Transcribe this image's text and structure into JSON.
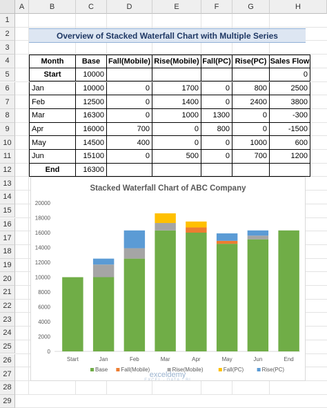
{
  "sheet": {
    "columns": [
      "A",
      "B",
      "C",
      "D",
      "E",
      "F",
      "G",
      "H"
    ],
    "rows": [
      "1",
      "2",
      "3",
      "4",
      "5",
      "6",
      "7",
      "8",
      "9",
      "10",
      "11",
      "12",
      "13",
      "14",
      "15",
      "16",
      "17",
      "18",
      "19",
      "20",
      "21",
      "22",
      "23",
      "24",
      "25",
      "26",
      "27",
      "28",
      "29"
    ],
    "title": "Overview of Stacked Waterfall Chart with Multiple Series"
  },
  "table": {
    "headers": [
      "Month",
      "Base",
      "Fall(Mobile)",
      "Rise(Mobile)",
      "Fall(PC)",
      "Rise(PC)",
      "Sales Flow"
    ],
    "rows": [
      [
        "Start",
        "10000",
        "",
        "",
        "",
        "",
        "0"
      ],
      [
        "Jan",
        "10000",
        "0",
        "1700",
        "0",
        "800",
        "2500"
      ],
      [
        "Feb",
        "12500",
        "0",
        "1400",
        "0",
        "2400",
        "3800"
      ],
      [
        "Mar",
        "16300",
        "0",
        "1000",
        "1300",
        "0",
        "-300"
      ],
      [
        "Apr",
        "16000",
        "700",
        "0",
        "800",
        "0",
        "-1500"
      ],
      [
        "May",
        "14500",
        "400",
        "0",
        "0",
        "1000",
        "600"
      ],
      [
        "Jun",
        "15100",
        "0",
        "500",
        "0",
        "700",
        "1200"
      ],
      [
        "End",
        "16300",
        "",
        "",
        "",
        "",
        ""
      ]
    ]
  },
  "chart_data": {
    "type": "bar",
    "title": "Stacked Waterfall Chart of ABC Company",
    "categories": [
      "Start",
      "Jan",
      "Feb",
      "Mar",
      "Apr",
      "May",
      "Jun",
      "End"
    ],
    "ylim": [
      0,
      20000
    ],
    "yticks": [
      "0",
      "2000",
      "4000",
      "6000",
      "8000",
      "10000",
      "12000",
      "14000",
      "16000",
      "18000",
      "20000"
    ],
    "grid": false,
    "legend_position": "bottom",
    "series": [
      {
        "name": "Base",
        "values": [
          10000,
          10000,
          12500,
          16300,
          16000,
          14500,
          15100,
          16300
        ]
      },
      {
        "name": "Fall(Mobile)",
        "values": [
          0,
          0,
          0,
          0,
          700,
          400,
          0,
          0
        ]
      },
      {
        "name": "Rise(Mobile)",
        "values": [
          0,
          1700,
          1400,
          1000,
          0,
          0,
          500,
          0
        ]
      },
      {
        "name": "Fall(PC)",
        "values": [
          0,
          0,
          0,
          1300,
          800,
          0,
          0,
          0
        ]
      },
      {
        "name": "Rise(PC)",
        "values": [
          0,
          800,
          2400,
          0,
          0,
          1000,
          700,
          0
        ]
      }
    ],
    "colors": {
      "Base": "#70ad47",
      "Fall(Mobile)": "#ed7d31",
      "Rise(Mobile)": "#a5a5a5",
      "Fall(PC)": "#ffc000",
      "Rise(PC)": "#5b9bd5"
    }
  },
  "watermark": {
    "name": "exceldemy",
    "tagline": "EXCEL · DATA · BI"
  }
}
